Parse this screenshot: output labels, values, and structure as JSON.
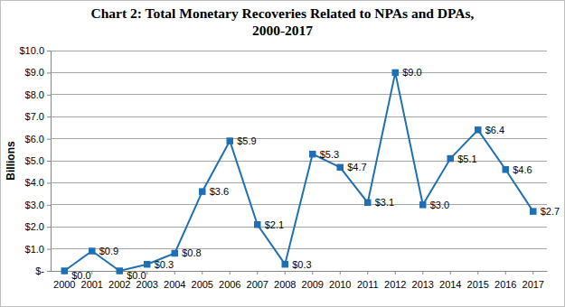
{
  "chart_data": {
    "type": "line",
    "title": [
      "Chart 2: Total Monetary Recoveries Related to NPAs and DPAs,",
      "2000-2017"
    ],
    "y_label": "Billions",
    "categories": [
      "2000",
      "2001",
      "2002",
      "2003",
      "2004",
      "2005",
      "2006",
      "2007",
      "2008",
      "2009",
      "2010",
      "2011",
      "2012",
      "2013",
      "2014",
      "2015",
      "2016",
      "2017"
    ],
    "values": [
      0.0,
      0.9,
      0.0,
      0.3,
      0.8,
      3.6,
      5.9,
      2.1,
      0.3,
      5.3,
      4.7,
      3.1,
      9.0,
      3.0,
      5.1,
      6.4,
      4.6,
      2.7
    ],
    "value_labels": [
      "$0.0",
      "$0.9",
      "$0.0",
      "$0.3",
      "$0.8",
      "$3.6",
      "$5.9",
      "$2.1",
      "$0.3",
      "$5.3",
      "$4.7",
      "$3.1",
      "$9.0",
      "$3.0",
      "$5.1",
      "$6.4",
      "$4.6",
      "$2.7"
    ],
    "color": "#1f6fb4",
    "marker": "square",
    "line_style": "solid",
    "data_labels": true,
    "grid": true,
    "ylim": [
      0,
      10
    ],
    "yticks": [
      {
        "value": 0,
        "label": "$-"
      },
      {
        "value": 1,
        "label": "$1.0"
      },
      {
        "value": 2,
        "label": "$2.0"
      },
      {
        "value": 3,
        "label": "$3.0"
      },
      {
        "value": 4,
        "label": "$4.0"
      },
      {
        "value": 5,
        "label": "$5.0"
      },
      {
        "value": 6,
        "label": "$6.0"
      },
      {
        "value": 7,
        "label": "$7.0"
      },
      {
        "value": 8,
        "label": "$8.0"
      },
      {
        "value": 9,
        "label": "$9.0"
      },
      {
        "value": 10,
        "label": "$10.0"
      }
    ]
  }
}
